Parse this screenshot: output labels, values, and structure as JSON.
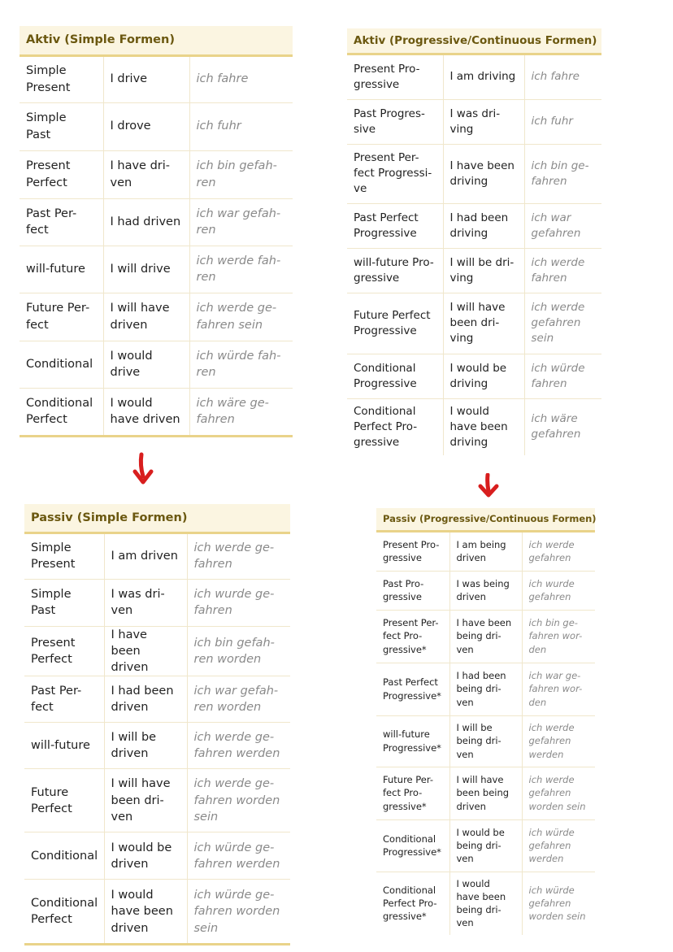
{
  "colors": {
    "header_bg": "#fbf5e1",
    "header_text": "#6b5810",
    "accent_border": "#e9d38a",
    "arrow": "#d81e1e",
    "german_text": "#8a8a8a"
  },
  "tables": [
    {
      "title": "Aktiv (Simple Formen)",
      "rows": [
        [
          "Simple\nPresent",
          "I drive",
          "ich fahre"
        ],
        [
          "Simple\nPast",
          "I drove",
          "ich fuhr"
        ],
        [
          "Present\nPerfect",
          "I have dri-\nven",
          "ich bin gefah-\nren"
        ],
        [
          "Past Per-\nfect",
          "I had driven",
          "ich war gefah-\nren"
        ],
        [
          "will-future",
          "I will drive",
          "ich werde fah-\nren"
        ],
        [
          "Future Per-\nfect",
          "I will have\ndriven",
          "ich werde ge-\nfahren sein"
        ],
        [
          "Conditional",
          "I would\ndrive",
          "ich würde fah-\nren"
        ],
        [
          "Conditional\nPerfect",
          "I would\nhave driven",
          "ich wäre ge-\nfahren"
        ]
      ]
    },
    {
      "title": "Aktiv (Progressive/Continuous Formen)",
      "rows": [
        [
          "Present Pro-\ngressive",
          "I am driving",
          "ich fahre"
        ],
        [
          "Past Progres-\nsive",
          "I was dri-\nving",
          "ich fuhr"
        ],
        [
          "Present Per-\nfect Progressi-\nve",
          "I have been\ndriving",
          "ich bin ge-\nfahren"
        ],
        [
          "Past Perfect\nProgressive",
          "I had been\ndriving",
          "ich war\ngefahren"
        ],
        [
          "will-future Pro-\ngressive",
          "I will be dri-\nving",
          "ich werde\nfahren"
        ],
        [
          "Future Perfect\nProgressive",
          "I will have\nbeen dri-\nving",
          "ich werde\ngefahren\nsein"
        ],
        [
          "Conditional\nProgressive",
          "I would be\ndriving",
          "ich würde\nfahren"
        ],
        [
          "Conditional\nPerfect Pro-\ngressive",
          "I would\nhave been\ndriving",
          "ich wäre\ngefahren"
        ]
      ]
    },
    {
      "title": "Passiv (Simple Formen)",
      "rows": [
        [
          "Simple\nPresent",
          "I am driven",
          "ich werde ge-\nfahren"
        ],
        [
          "Simple\nPast",
          "I was dri-\nven",
          "ich wurde ge-\nfahren"
        ],
        [
          "Present\nPerfect",
          "I have been\ndriven",
          "ich bin gefah-\nren worden"
        ],
        [
          "Past Per-\nfect",
          "I had been\ndriven",
          "ich war gefah-\nren worden"
        ],
        [
          "will-future",
          "I will be\ndriven",
          "ich werde ge-\nfahren werden"
        ],
        [
          "Future\nPerfect",
          "I will have\nbeen dri-\nven",
          "ich werde ge-\nfahren worden\nsein"
        ],
        [
          "Conditional",
          "I would be\ndriven",
          "ich würde ge-\nfahren werden"
        ],
        [
          "Conditional\nPerfect",
          "I would\nhave been\ndriven",
          "ich würde ge-\nfahren worden\nsein"
        ]
      ]
    },
    {
      "title": "Passiv (Progressive/Continuous Formen)",
      "rows": [
        [
          "Present Pro-\ngressive",
          "I am being\ndriven",
          "ich werde\ngefahren"
        ],
        [
          "Past Pro-\ngressive",
          "I was being\ndriven",
          "ich wurde\ngefahren"
        ],
        [
          "Present Per-\nfect Pro-\ngressive*",
          "I have been\nbeing dri-\nven",
          "ich bin ge-\nfahren wor-\nden"
        ],
        [
          "Past Perfect\nProgressive*",
          "I had been\nbeing dri-\nven",
          "ich war ge-\nfahren wor-\nden"
        ],
        [
          "will-future\nProgressive*",
          "I will be\nbeing dri-\nven",
          "ich werde\ngefahren\nwerden"
        ],
        [
          "Future Per-\nfect Pro-\ngressive*",
          "I will have\nbeen being\ndriven",
          "ich werde\ngefahren\nworden sein"
        ],
        [
          "Conditional\nProgressive*",
          "I would be\nbeing dri-\nven",
          "ich würde\ngefahren\nwerden"
        ],
        [
          "Conditional\nPerfect Pro-\ngressive*",
          "I would\nhave been\nbeing dri-\nven",
          "ich würde\ngefahren\nworden sein"
        ]
      ]
    }
  ]
}
